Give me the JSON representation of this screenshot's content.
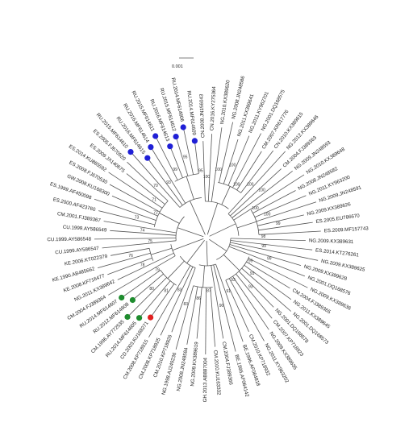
{
  "figure": {
    "scale_label": "0.001",
    "colors": {
      "blue": "#1f1fd6",
      "green": "#1e8c2e",
      "red": "#e02020",
      "branch": "#555555"
    }
  },
  "leaves": [
    {
      "label": "CN.2008.JN156043",
      "marker": null
    },
    {
      "label": "CN.2016.KY275364",
      "marker": null
    },
    {
      "label": "NG.2010.KX389620",
      "marker": null
    },
    {
      "label": "NG.2008.JN248586",
      "marker": null
    },
    {
      "label": "NG.2011.KX389641",
      "marker": null
    },
    {
      "label": "NG.2011.KY962701",
      "marker": null
    },
    {
      "label": "NG.2001.DQ168575",
      "marker": null
    },
    {
      "label": "CM.2007.KR617776",
      "marker": null
    },
    {
      "label": "CN.2010.KX389615",
      "marker": null
    },
    {
      "label": "NG.2012.KX389646",
      "marker": null
    },
    {
      "label": "CM.2004.FJ389363",
      "marker": null
    },
    {
      "label": "NG.2009.JN248593",
      "marker": null
    },
    {
      "label": "NG.2010.KX389648",
      "marker": null
    },
    {
      "label": "NG.2008.JN248582",
      "marker": null
    },
    {
      "label": "NG.2011.KY963200",
      "marker": null
    },
    {
      "label": "NG.2009.JN248591",
      "marker": null
    },
    {
      "label": "NG.2009.KX389626",
      "marker": null
    },
    {
      "label": "ES.2005.EU786670",
      "marker": null
    },
    {
      "label": "ES.2009.MF157743",
      "marker": null
    },
    {
      "label": "NG.2009.KX389631",
      "marker": null
    },
    {
      "label": "ES.2014.KT276261",
      "marker": null
    },
    {
      "label": "NG.2009.KX389625",
      "marker": null
    },
    {
      "label": "NG.2009.KX389628",
      "marker": null
    },
    {
      "label": "NG.2001.DQ168576",
      "marker": null
    },
    {
      "label": "NG.2009.KX389636",
      "marker": null
    },
    {
      "label": "CM.2004.FJ389365",
      "marker": null
    },
    {
      "label": "NG.2011.KX389645",
      "marker": null
    },
    {
      "label": "NG.2001.DQ168573",
      "marker": null
    },
    {
      "label": "NG.2001.DQ168578",
      "marker": null
    },
    {
      "label": "CM.2007.KP718923",
      "marker": null
    },
    {
      "label": "NG.2009.KX389635",
      "marker": null
    },
    {
      "label": "NG.2011.KY963202",
      "marker": null
    },
    {
      "label": "CM.2010.KP718932",
      "marker": null
    },
    {
      "label": "BE.1996.AF064818",
      "marker": null
    },
    {
      "label": "BE.1995.AF064142",
      "marker": null
    },
    {
      "label": "CM.2004.FJ389366",
      "marker": null
    },
    {
      "label": "CM.2010.KU163332",
      "marker": null
    },
    {
      "label": "GH.2013.AB887004",
      "marker": null
    },
    {
      "label": "NG.2009.KX389619",
      "marker": null
    },
    {
      "label": "NG.2008.JN248584",
      "marker": null
    },
    {
      "label": "NG.1998.AJ249236",
      "marker": null
    },
    {
      "label": "CM.2010.KP718926",
      "marker": null
    },
    {
      "label": "CM.2008.KP718925",
      "marker": null
    },
    {
      "label": "CM.2008.KP718915",
      "marker": null
    },
    {
      "label": "CD.2003.KU168271",
      "marker": "red"
    },
    {
      "label": "RU.2014.MF614605",
      "marker": "green"
    },
    {
      "label": "CM.1996.AY772535",
      "marker": "green"
    },
    {
      "label": "RU.2012.MF614608",
      "marker": "green"
    },
    {
      "label": "RU.2014.MF614607",
      "marker": "green"
    },
    {
      "label": "CM.2004.FJ389364",
      "marker": null
    },
    {
      "label": "NG.2011.KX389642",
      "marker": null
    },
    {
      "label": "KE.2008.KF716477",
      "marker": null
    },
    {
      "label": "KE.1990.AB485662",
      "marker": null
    },
    {
      "label": "KE.2006.KT022379",
      "marker": null
    },
    {
      "label": "CU.1999.AY586547",
      "marker": null
    },
    {
      "label": "CU.1999.AY586548",
      "marker": null
    },
    {
      "label": "CU.1999.AY586549",
      "marker": null
    },
    {
      "label": "CM.2001.FJ389367",
      "marker": null
    },
    {
      "label": "ES.2000.AF423760",
      "marker": null
    },
    {
      "label": "ES.1999.AF450098",
      "marker": null
    },
    {
      "label": "GW.2008.KU168300",
      "marker": null
    },
    {
      "label": "ES.2008.FJ670530",
      "marker": null
    },
    {
      "label": "ES.2014.KU865592",
      "marker": null
    },
    {
      "label": "ES.2009.JX140675",
      "marker": null
    },
    {
      "label": "ES.2005.FJ670520",
      "marker": null
    },
    {
      "label": "RU.2015.MF614610",
      "marker": "blue"
    },
    {
      "label": "RU.2016.MF614615",
      "marker": "blue"
    },
    {
      "label": "RU.2016.MF614614",
      "marker": "blue"
    },
    {
      "label": "RU.2015.MF614611",
      "marker": "blue"
    },
    {
      "label": "RU.2016.MF614613",
      "marker": "blue"
    },
    {
      "label": "RU.2015.MF614612",
      "marker": "blue"
    },
    {
      "label": "RU.2014.MF614606",
      "marker": "blue"
    },
    {
      "label": "RU.2014.MF614609",
      "marker": "blue"
    }
  ],
  "bootstrap": [
    "100",
    "100",
    "100",
    "100",
    "100",
    "100",
    "100",
    "100",
    "99",
    "98",
    "99",
    "99",
    "99",
    "93",
    "93",
    "93",
    "91",
    "90",
    "87",
    "86",
    "83",
    "83",
    "81",
    "80",
    "79",
    "78",
    "76",
    "75",
    "74",
    "73",
    "72",
    "71",
    "70",
    "93",
    "99",
    "95",
    "95"
  ]
}
